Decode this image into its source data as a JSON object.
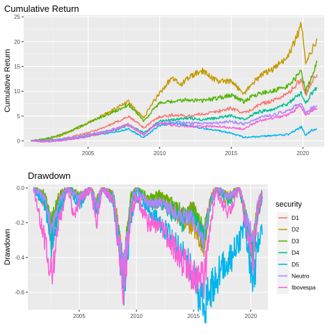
{
  "chart_data": [
    {
      "type": "line",
      "title": "Cumulative Return",
      "xlabel": "",
      "ylabel": "Cumulative Return",
      "xlim": [
        2000.5,
        2021.5
      ],
      "ylim": [
        -1.2,
        25.3
      ],
      "x_ticks": [
        2005,
        2010,
        2015,
        2020
      ],
      "y_ticks": [
        0,
        5,
        10,
        15,
        20,
        25
      ],
      "grid": true,
      "x_tick_labels": [
        "2005",
        "2010",
        "2015",
        "2020"
      ],
      "y_tick_labels": [
        "0",
        "5",
        "10",
        "15",
        "20",
        "25"
      ],
      "series": [
        {
          "name": "D1",
          "color": "#F8766D",
          "x": [
            2001,
            2002,
            2003,
            2004,
            2005,
            2006,
            2007,
            2007.8,
            2008.5,
            2008.9,
            2009.5,
            2010,
            2011,
            2012,
            2013,
            2014,
            2015,
            2015.9,
            2016.5,
            2017,
            2018,
            2019,
            2019.9,
            2020.2,
            2020.6,
            2021
          ],
          "y": [
            0,
            0.1,
            0.3,
            0.9,
            1.6,
            2.6,
            3.8,
            4.9,
            3.6,
            2.6,
            3.9,
            4.9,
            5.2,
            5.0,
            5.4,
            5.9,
            6.6,
            5.6,
            6.4,
            7.4,
            8.2,
            9.6,
            12.4,
            9.3,
            11.8,
            13.4
          ]
        },
        {
          "name": "D2",
          "color": "#C49A00",
          "x": [
            2001,
            2002,
            2003,
            2004,
            2005,
            2006,
            2007,
            2007.8,
            2008.5,
            2008.9,
            2009.5,
            2010,
            2010.8,
            2011.5,
            2012.2,
            2013,
            2014,
            2015,
            2015.9,
            2016.5,
            2017,
            2018,
            2019,
            2019.9,
            2020.2,
            2020.6,
            2021
          ],
          "y": [
            0,
            0.3,
            0.9,
            2.2,
            3.6,
            5.1,
            6.6,
            7.9,
            5.6,
            4.6,
            7.6,
            9.6,
            12.6,
            11.4,
            13.1,
            14.1,
            12.1,
            11.9,
            9.6,
            11.6,
            13.1,
            14.6,
            17.1,
            23.3,
            16.1,
            18.1,
            20.6
          ]
        },
        {
          "name": "D3",
          "color": "#53B400",
          "x": [
            2001,
            2002,
            2003,
            2004,
            2005,
            2006,
            2007,
            2007.8,
            2008.5,
            2008.9,
            2009.5,
            2010,
            2011,
            2012,
            2013,
            2014,
            2015,
            2015.9,
            2016.5,
            2017,
            2018,
            2019,
            2019.9,
            2020.2,
            2020.6,
            2021
          ],
          "y": [
            0,
            0.4,
            1.2,
            2.3,
            3.6,
            4.9,
            6.1,
            7.3,
            5.4,
            4.0,
            6.1,
            7.6,
            7.9,
            8.3,
            8.1,
            8.6,
            9.3,
            7.9,
            9.0,
            9.6,
            10.1,
            11.1,
            13.9,
            9.9,
            12.9,
            15.9
          ]
        },
        {
          "name": "D4",
          "color": "#00C094",
          "x": [
            2001,
            2002,
            2003,
            2004,
            2005,
            2006,
            2007,
            2007.8,
            2008.5,
            2008.9,
            2009.5,
            2010,
            2011,
            2012,
            2013,
            2014,
            2015,
            2015.9,
            2016.5,
            2017,
            2018,
            2019,
            2019.9,
            2020.2,
            2020.6,
            2021
          ],
          "y": [
            0,
            0.1,
            0.3,
            0.7,
            1.2,
            1.7,
            2.3,
            3.1,
            2.3,
            1.6,
            2.9,
            3.9,
            4.3,
            4.6,
            4.3,
            4.6,
            5.1,
            4.4,
            5.3,
            5.9,
            6.3,
            7.6,
            9.6,
            7.3,
            9.6,
            10.6
          ]
        },
        {
          "name": "D5",
          "color": "#00B6EB",
          "x": [
            2001,
            2002,
            2003,
            2004,
            2005,
            2006,
            2007,
            2007.8,
            2008.5,
            2008.9,
            2009.5,
            2010,
            2011,
            2012,
            2013,
            2014,
            2015,
            2015.9,
            2016.5,
            2017,
            2018,
            2019,
            2019.9,
            2020.2,
            2020.6,
            2021
          ],
          "y": [
            0,
            0.05,
            0.2,
            0.5,
            0.9,
            1.4,
            1.9,
            2.4,
            1.3,
            0.6,
            2.1,
            3.1,
            3.6,
            3.1,
            2.6,
            2.1,
            1.6,
            0.7,
            0.8,
            0.9,
            1.1,
            1.3,
            2.8,
            1.1,
            2.1,
            2.4
          ]
        },
        {
          "name": "Neutro",
          "color": "#A58AFF",
          "x": [
            2001,
            2002,
            2003,
            2004,
            2005,
            2006,
            2007,
            2007.8,
            2008.5,
            2008.9,
            2009.5,
            2010,
            2011,
            2012,
            2013,
            2014,
            2015,
            2015.9,
            2016.5,
            2017,
            2018,
            2019,
            2019.9,
            2020.2,
            2020.6,
            2021
          ],
          "y": [
            0,
            0.1,
            0.3,
            0.7,
            1.2,
            1.8,
            2.5,
            3.3,
            2.0,
            1.4,
            2.7,
            3.6,
            3.8,
            3.6,
            3.5,
            3.6,
            3.9,
            3.4,
            4.1,
            4.7,
            5.3,
            6.1,
            7.8,
            5.6,
            6.6,
            7.1
          ]
        },
        {
          "name": "Ibovespa",
          "color": "#FB61D7",
          "x": [
            2001,
            2002,
            2003,
            2004,
            2005,
            2006,
            2007,
            2007.8,
            2008.5,
            2008.9,
            2009.5,
            2010,
            2011,
            2012,
            2013,
            2014,
            2015,
            2015.9,
            2016.5,
            2017,
            2018,
            2019,
            2019.9,
            2020.2,
            2020.6,
            2021
          ],
          "y": [
            0,
            -0.2,
            0,
            0.4,
            0.9,
            1.6,
            2.4,
            3.4,
            1.9,
            1.2,
            2.9,
            3.6,
            3.1,
            3.0,
            2.9,
            2.9,
            2.6,
            2.4,
            3.4,
            4.1,
            4.6,
            5.3,
            7.1,
            5.0,
            6.1,
            6.6
          ]
        }
      ]
    },
    {
      "type": "line",
      "title": "Drawdown",
      "xlabel": "",
      "ylabel": "Drawdown",
      "xlim": [
        2000.5,
        2021.5
      ],
      "ylim": [
        -0.7,
        0.02
      ],
      "x_ticks": [
        2005,
        2010,
        2015,
        2020
      ],
      "y_ticks": [
        0,
        -0.2,
        -0.4,
        -0.6
      ],
      "grid": true,
      "x_tick_labels": [
        "2005",
        "2010",
        "2015",
        "2020"
      ],
      "y_tick_labels": [
        "0.0",
        "-0.2",
        "-0.4",
        "-0.6"
      ],
      "legend": {
        "title": "security",
        "position": "right"
      },
      "series": [
        {
          "name": "D1",
          "color": "#F8766D",
          "x": [
            2001,
            2002,
            2002.6,
            2003.2,
            2004,
            2005,
            2006,
            2006.5,
            2007,
            2008,
            2008.9,
            2009.5,
            2010,
            2011,
            2012,
            2013,
            2014,
            2015,
            2015.9,
            2016.5,
            2017,
            2018,
            2019,
            2020.2,
            2020.6,
            2021
          ],
          "y": [
            0,
            -0.1,
            -0.31,
            -0.12,
            0,
            -0.06,
            0,
            -0.11,
            0,
            -0.05,
            -0.5,
            -0.1,
            0,
            -0.1,
            -0.08,
            -0.12,
            -0.18,
            -0.1,
            -0.3,
            -0.05,
            0,
            -0.08,
            0,
            -0.38,
            -0.1,
            -0.03
          ]
        },
        {
          "name": "D2",
          "color": "#C49A00",
          "x": [
            2001,
            2002,
            2002.6,
            2003.2,
            2004,
            2005,
            2006,
            2006.5,
            2007,
            2008,
            2008.9,
            2009.5,
            2010,
            2011,
            2012,
            2013,
            2014,
            2015,
            2015.9,
            2016.5,
            2017,
            2018,
            2019,
            2020.2,
            2020.6,
            2021
          ],
          "y": [
            0,
            -0.05,
            -0.22,
            -0.05,
            0,
            -0.05,
            0,
            -0.08,
            0,
            -0.04,
            -0.46,
            -0.05,
            0,
            -0.08,
            -0.05,
            -0.1,
            -0.18,
            -0.22,
            -0.32,
            -0.08,
            0,
            -0.05,
            0,
            -0.35,
            -0.1,
            -0.02
          ]
        },
        {
          "name": "D3",
          "color": "#53B400",
          "x": [
            2001,
            2002,
            2002.6,
            2003.2,
            2004,
            2005,
            2006,
            2006.5,
            2007,
            2008,
            2008.9,
            2009.5,
            2010,
            2011,
            2012,
            2013,
            2014,
            2015,
            2015.9,
            2016.5,
            2017,
            2018,
            2019,
            2020.2,
            2020.6,
            2021
          ],
          "y": [
            0,
            -0.04,
            -0.2,
            -0.05,
            0,
            -0.05,
            0,
            -0.1,
            0,
            -0.05,
            -0.48,
            -0.06,
            0,
            -0.06,
            -0.04,
            -0.08,
            -0.14,
            -0.12,
            -0.26,
            -0.06,
            0,
            -0.06,
            0,
            -0.36,
            -0.12,
            -0.03
          ]
        },
        {
          "name": "D4",
          "color": "#00C094",
          "x": [
            2001,
            2002,
            2002.6,
            2003.2,
            2004,
            2005,
            2006,
            2006.5,
            2007,
            2008,
            2008.9,
            2009.5,
            2010,
            2011,
            2012,
            2013,
            2014,
            2015,
            2015.9,
            2016.5,
            2017,
            2018,
            2019,
            2020.2,
            2020.6,
            2021
          ],
          "y": [
            0,
            -0.08,
            -0.3,
            -0.1,
            0,
            -0.08,
            0,
            -0.12,
            0,
            -0.06,
            -0.52,
            -0.1,
            0,
            -0.1,
            -0.08,
            -0.14,
            -0.2,
            -0.16,
            -0.3,
            -0.08,
            0,
            -0.08,
            0,
            -0.4,
            -0.15,
            -0.05
          ]
        },
        {
          "name": "D5",
          "color": "#00B6EB",
          "x": [
            2001,
            2002,
            2002.6,
            2003.2,
            2004,
            2005,
            2006,
            2006.5,
            2007,
            2008,
            2008.9,
            2009.5,
            2010,
            2011,
            2012,
            2013,
            2014,
            2015,
            2015.5,
            2016,
            2016.5,
            2017,
            2017.6,
            2018.3,
            2019,
            2019.5,
            2020.2,
            2020.6,
            2021
          ],
          "y": [
            0,
            -0.1,
            -0.35,
            -0.15,
            0,
            -0.1,
            0,
            -0.14,
            0,
            -0.08,
            -0.62,
            -0.18,
            -0.05,
            -0.12,
            -0.2,
            -0.28,
            -0.38,
            -0.5,
            -0.6,
            -0.68,
            -0.6,
            -0.52,
            -0.45,
            -0.4,
            -0.32,
            -0.2,
            -0.62,
            -0.3,
            -0.27
          ]
        },
        {
          "name": "Neutro",
          "color": "#A58AFF",
          "x": [
            2001,
            2002,
            2002.6,
            2003.2,
            2004,
            2005,
            2006,
            2006.5,
            2007,
            2008,
            2008.9,
            2009.5,
            2010,
            2011,
            2012,
            2013,
            2014,
            2015,
            2015.9,
            2016.5,
            2017,
            2018,
            2019,
            2020.2,
            2020.6,
            2021
          ],
          "y": [
            0,
            -0.06,
            -0.25,
            -0.08,
            0,
            -0.06,
            0,
            -0.1,
            0,
            -0.05,
            -0.48,
            -0.08,
            0,
            -0.1,
            -0.08,
            -0.12,
            -0.16,
            -0.18,
            -0.32,
            -0.08,
            0,
            -0.06,
            0,
            -0.32,
            -0.1,
            -0.03
          ]
        },
        {
          "name": "Ibovespa",
          "color": "#FB61D7",
          "x": [
            2001,
            2001.5,
            2002,
            2002.6,
            2003.2,
            2004,
            2004.5,
            2005,
            2006,
            2006.5,
            2007,
            2008,
            2008.9,
            2009.5,
            2010,
            2011,
            2012,
            2013,
            2014,
            2015,
            2015.9,
            2016.5,
            2017,
            2018,
            2019,
            2020.2,
            2020.6,
            2021
          ],
          "y": [
            0,
            -0.18,
            -0.3,
            -0.52,
            -0.2,
            0,
            -0.16,
            -0.08,
            0,
            -0.2,
            0,
            -0.08,
            -0.6,
            -0.16,
            -0.05,
            -0.2,
            -0.22,
            -0.3,
            -0.42,
            -0.5,
            -0.55,
            -0.22,
            -0.02,
            -0.15,
            0,
            -0.45,
            -0.15,
            -0.05
          ]
        }
      ]
    }
  ]
}
